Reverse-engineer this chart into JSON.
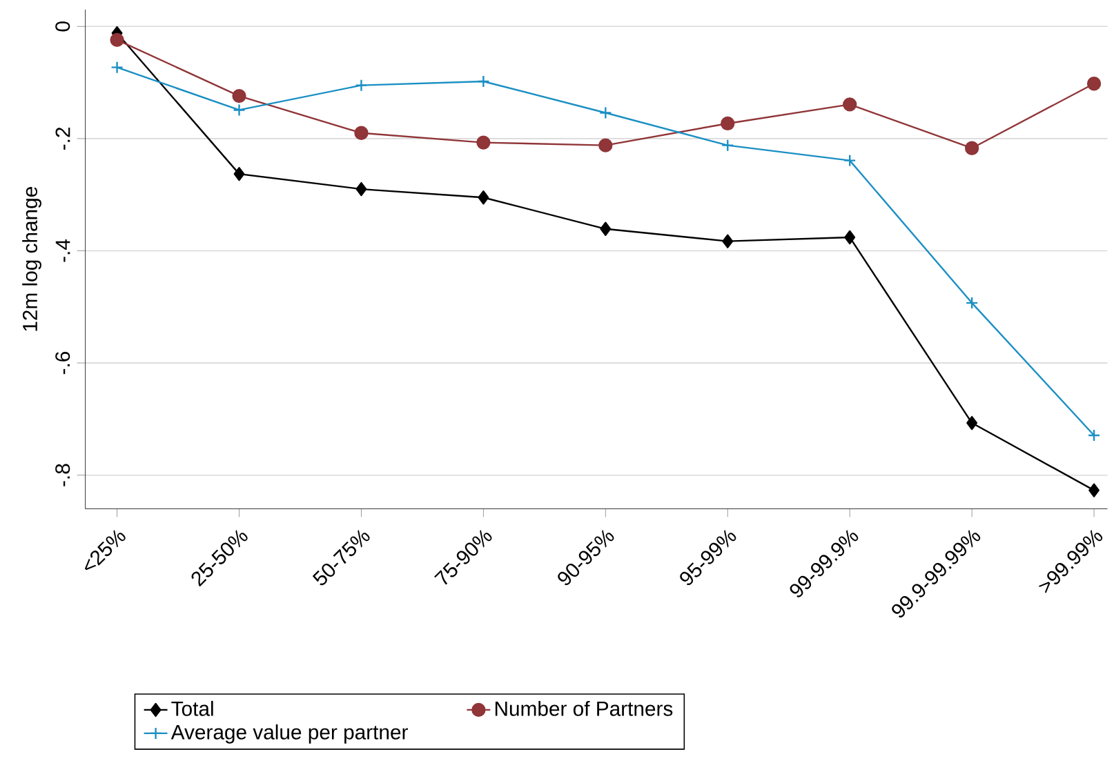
{
  "chart_data": {
    "type": "line",
    "ylabel": "12m log change",
    "categories": [
      "<25%",
      "25-50%",
      "50-75%",
      "75-90%",
      "90-95%",
      "95-99%",
      "99-99.9%",
      "99.9-99.99%",
      ">99.99%"
    ],
    "series": [
      {
        "name": "Total",
        "color": "#000000",
        "marker": "diamond",
        "values": [
          -0.012,
          -0.263,
          -0.29,
          -0.305,
          -0.361,
          -0.383,
          -0.376,
          -0.707,
          -0.827
        ]
      },
      {
        "name": "Number of Partners",
        "color": "#903538",
        "marker": "circle",
        "values": [
          -0.024,
          -0.124,
          -0.19,
          -0.207,
          -0.212,
          -0.173,
          -0.139,
          -0.217,
          -0.102
        ]
      },
      {
        "name": "Average value per partner",
        "color": "#1a8fc3",
        "marker": "cross",
        "values": [
          -0.073,
          -0.149,
          -0.105,
          -0.098,
          -0.154,
          -0.212,
          -0.239,
          -0.493,
          -0.729
        ]
      }
    ],
    "ylim": [
      -0.86,
      0.03
    ],
    "yticks": [
      {
        "value": 0,
        "label": "0"
      },
      {
        "value": -0.2,
        "label": "-.2"
      },
      {
        "value": -0.4,
        "label": "-.4"
      },
      {
        "value": -0.6,
        "label": "-.6"
      },
      {
        "value": -0.8,
        "label": "-.8"
      }
    ],
    "grid": "y",
    "legend": "bottom"
  }
}
